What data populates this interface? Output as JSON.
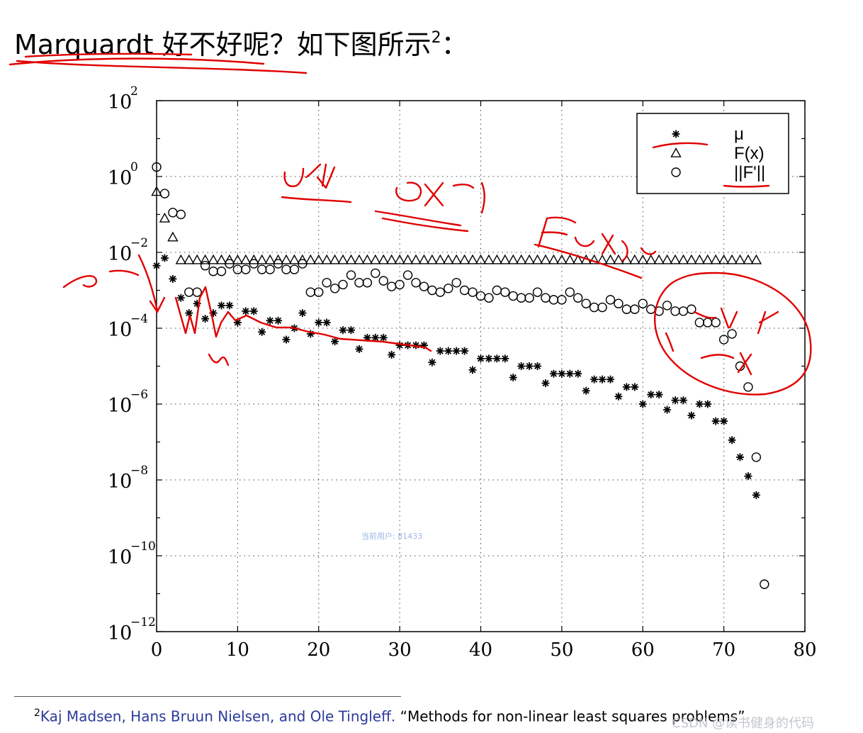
{
  "title": {
    "text": "Marquardt 好不好呢？如下图所示",
    "footnote_mark": "2",
    "suffix": "："
  },
  "footnote": {
    "mark": "2",
    "authors": "Kaj Madsen, Hans Bruun Nielsen, and Ole Tingleff.",
    "quote": " “Methods for non-linear least squares problems”"
  },
  "watermarks": {
    "center": "当前用户: 81433",
    "corner": "CSDN @读书健身的代码"
  },
  "annotation_color": "#e00000",
  "chart_data": {
    "type": "scatter",
    "y_scale": "log",
    "xlim": [
      0,
      80
    ],
    "ylim_exp": [
      -12,
      2
    ],
    "x_ticks": [
      "0",
      "10",
      "20",
      "30",
      "40",
      "50",
      "60",
      "70",
      "80"
    ],
    "y_ticks": [
      {
        "base": "10",
        "exp": "2"
      },
      {
        "base": "10",
        "exp": "0"
      },
      {
        "base": "10",
        "exp": "−2"
      },
      {
        "base": "10",
        "exp": "−4"
      },
      {
        "base": "10",
        "exp": "−6"
      },
      {
        "base": "10",
        "exp": "−8"
      },
      {
        "base": "10",
        "exp": "−10"
      },
      {
        "base": "10",
        "exp": "−12"
      }
    ],
    "grid": true,
    "legend_position": "top-right",
    "series": [
      {
        "name": "μ",
        "marker": "asterisk",
        "points": [
          [
            0,
            -2.35
          ],
          [
            1,
            -2.15
          ],
          [
            2,
            -2.7
          ],
          [
            3,
            -3.2
          ],
          [
            4,
            -3.6
          ],
          [
            5,
            -3.35
          ],
          [
            6,
            -3.75
          ],
          [
            7,
            -3.6
          ],
          [
            8,
            -3.4
          ],
          [
            9,
            -3.4
          ],
          [
            10,
            -3.85
          ],
          [
            11,
            -3.55
          ],
          [
            12,
            -3.55
          ],
          [
            13,
            -4.1
          ],
          [
            14,
            -3.8
          ],
          [
            15,
            -3.8
          ],
          [
            16,
            -4.3
          ],
          [
            17,
            -4.0
          ],
          [
            18,
            -3.6
          ],
          [
            19,
            -4.15
          ],
          [
            20,
            -3.85
          ],
          [
            21,
            -3.85
          ],
          [
            22,
            -4.35
          ],
          [
            23,
            -4.05
          ],
          [
            24,
            -4.05
          ],
          [
            25,
            -4.55
          ],
          [
            26,
            -4.25
          ],
          [
            27,
            -4.25
          ],
          [
            28,
            -4.25
          ],
          [
            29,
            -4.7
          ],
          [
            30,
            -4.45
          ],
          [
            31,
            -4.45
          ],
          [
            32,
            -4.45
          ],
          [
            33,
            -4.45
          ],
          [
            34,
            -4.9
          ],
          [
            35,
            -4.6
          ],
          [
            36,
            -4.6
          ],
          [
            37,
            -4.6
          ],
          [
            38,
            -4.6
          ],
          [
            39,
            -5.1
          ],
          [
            40,
            -4.8
          ],
          [
            41,
            -4.8
          ],
          [
            42,
            -4.8
          ],
          [
            43,
            -4.8
          ],
          [
            44,
            -5.3
          ],
          [
            45,
            -5.0
          ],
          [
            46,
            -5.0
          ],
          [
            47,
            -5.0
          ],
          [
            48,
            -5.45
          ],
          [
            49,
            -5.2
          ],
          [
            50,
            -5.2
          ],
          [
            51,
            -5.2
          ],
          [
            52,
            -5.2
          ],
          [
            53,
            -5.65
          ],
          [
            54,
            -5.35
          ],
          [
            55,
            -5.35
          ],
          [
            56,
            -5.35
          ],
          [
            57,
            -5.8
          ],
          [
            58,
            -5.55
          ],
          [
            59,
            -5.55
          ],
          [
            60,
            -6.0
          ],
          [
            61,
            -5.75
          ],
          [
            62,
            -5.75
          ],
          [
            63,
            -6.15
          ],
          [
            64,
            -5.9
          ],
          [
            65,
            -5.9
          ],
          [
            66,
            -6.3
          ],
          [
            67,
            -6.0
          ],
          [
            68,
            -6.0
          ],
          [
            69,
            -6.45
          ],
          [
            70,
            -6.45
          ],
          [
            71,
            -6.95
          ],
          [
            72,
            -7.4
          ],
          [
            73,
            -7.9
          ],
          [
            74,
            -8.4
          ]
        ]
      },
      {
        "name": "F(x)",
        "marker": "triangle",
        "points": [
          [
            0,
            -0.4
          ],
          [
            1,
            -1.1
          ],
          [
            2,
            -1.6
          ],
          [
            3,
            -2.2
          ],
          [
            4,
            -2.2
          ],
          [
            5,
            -2.2
          ],
          [
            6,
            -2.2
          ],
          [
            7,
            -2.2
          ],
          [
            8,
            -2.2
          ],
          [
            9,
            -2.2
          ],
          [
            10,
            -2.2
          ],
          [
            11,
            -2.2
          ],
          [
            12,
            -2.2
          ],
          [
            13,
            -2.2
          ],
          [
            14,
            -2.2
          ],
          [
            15,
            -2.2
          ],
          [
            16,
            -2.2
          ],
          [
            17,
            -2.2
          ],
          [
            18,
            -2.2
          ],
          [
            19,
            -2.2
          ],
          [
            20,
            -2.2
          ],
          [
            21,
            -2.2
          ],
          [
            22,
            -2.2
          ],
          [
            23,
            -2.2
          ],
          [
            24,
            -2.2
          ],
          [
            25,
            -2.2
          ],
          [
            26,
            -2.2
          ],
          [
            27,
            -2.2
          ],
          [
            28,
            -2.2
          ],
          [
            29,
            -2.2
          ],
          [
            30,
            -2.2
          ],
          [
            31,
            -2.2
          ],
          [
            32,
            -2.2
          ],
          [
            33,
            -2.2
          ],
          [
            34,
            -2.2
          ],
          [
            35,
            -2.2
          ],
          [
            36,
            -2.2
          ],
          [
            37,
            -2.2
          ],
          [
            38,
            -2.2
          ],
          [
            39,
            -2.2
          ],
          [
            40,
            -2.2
          ],
          [
            41,
            -2.2
          ],
          [
            42,
            -2.2
          ],
          [
            43,
            -2.2
          ],
          [
            44,
            -2.2
          ],
          [
            45,
            -2.2
          ],
          [
            46,
            -2.2
          ],
          [
            47,
            -2.2
          ],
          [
            48,
            -2.2
          ],
          [
            49,
            -2.2
          ],
          [
            50,
            -2.2
          ],
          [
            51,
            -2.2
          ],
          [
            52,
            -2.2
          ],
          [
            53,
            -2.2
          ],
          [
            54,
            -2.2
          ],
          [
            55,
            -2.2
          ],
          [
            56,
            -2.2
          ],
          [
            57,
            -2.2
          ],
          [
            58,
            -2.2
          ],
          [
            59,
            -2.2
          ],
          [
            60,
            -2.2
          ],
          [
            61,
            -2.2
          ],
          [
            62,
            -2.2
          ],
          [
            63,
            -2.2
          ],
          [
            64,
            -2.2
          ],
          [
            65,
            -2.2
          ],
          [
            66,
            -2.2
          ],
          [
            67,
            -2.2
          ],
          [
            68,
            -2.2
          ],
          [
            69,
            -2.2
          ],
          [
            70,
            -2.2
          ],
          [
            71,
            -2.2
          ],
          [
            72,
            -2.2
          ],
          [
            73,
            -2.2
          ],
          [
            74,
            -2.2
          ]
        ]
      },
      {
        "name": "||F'||",
        "marker": "circle",
        "points": [
          [
            0,
            0.25
          ],
          [
            1,
            -0.45
          ],
          [
            2,
            -0.95
          ],
          [
            3,
            -1.0
          ],
          [
            4,
            -3.05
          ],
          [
            5,
            -3.05
          ],
          [
            6,
            -2.35
          ],
          [
            7,
            -2.5
          ],
          [
            8,
            -2.5
          ],
          [
            9,
            -2.3
          ],
          [
            10,
            -2.45
          ],
          [
            11,
            -2.45
          ],
          [
            12,
            -2.3
          ],
          [
            13,
            -2.45
          ],
          [
            14,
            -2.45
          ],
          [
            15,
            -2.3
          ],
          [
            16,
            -2.45
          ],
          [
            17,
            -2.45
          ],
          [
            18,
            -2.3
          ],
          [
            19,
            -3.05
          ],
          [
            20,
            -3.05
          ],
          [
            21,
            -2.8
          ],
          [
            22,
            -2.95
          ],
          [
            23,
            -2.85
          ],
          [
            24,
            -2.6
          ],
          [
            25,
            -2.8
          ],
          [
            26,
            -2.8
          ],
          [
            27,
            -2.55
          ],
          [
            28,
            -2.75
          ],
          [
            29,
            -2.9
          ],
          [
            30,
            -2.85
          ],
          [
            31,
            -2.6
          ],
          [
            32,
            -2.8
          ],
          [
            33,
            -2.9
          ],
          [
            34,
            -3.0
          ],
          [
            35,
            -3.05
          ],
          [
            36,
            -2.95
          ],
          [
            37,
            -2.8
          ],
          [
            38,
            -3.0
          ],
          [
            39,
            -3.05
          ],
          [
            40,
            -3.15
          ],
          [
            41,
            -3.2
          ],
          [
            42,
            -3.0
          ],
          [
            43,
            -3.05
          ],
          [
            44,
            -3.15
          ],
          [
            45,
            -3.2
          ],
          [
            46,
            -3.2
          ],
          [
            47,
            -3.05
          ],
          [
            48,
            -3.2
          ],
          [
            49,
            -3.25
          ],
          [
            50,
            -3.25
          ],
          [
            51,
            -3.05
          ],
          [
            52,
            -3.2
          ],
          [
            53,
            -3.35
          ],
          [
            54,
            -3.45
          ],
          [
            55,
            -3.45
          ],
          [
            56,
            -3.25
          ],
          [
            57,
            -3.35
          ],
          [
            58,
            -3.5
          ],
          [
            59,
            -3.5
          ],
          [
            60,
            -3.35
          ],
          [
            61,
            -3.5
          ],
          [
            62,
            -3.55
          ],
          [
            63,
            -3.4
          ],
          [
            64,
            -3.55
          ],
          [
            65,
            -3.55
          ],
          [
            66,
            -3.5
          ],
          [
            67,
            -3.85
          ],
          [
            68,
            -3.85
          ],
          [
            69,
            -3.85
          ],
          [
            70,
            -4.3
          ],
          [
            71,
            -4.15
          ],
          [
            72,
            -5.0
          ],
          [
            73,
            -5.55
          ],
          [
            74,
            -7.4
          ],
          [
            75,
            -10.75
          ]
        ]
      }
    ]
  }
}
